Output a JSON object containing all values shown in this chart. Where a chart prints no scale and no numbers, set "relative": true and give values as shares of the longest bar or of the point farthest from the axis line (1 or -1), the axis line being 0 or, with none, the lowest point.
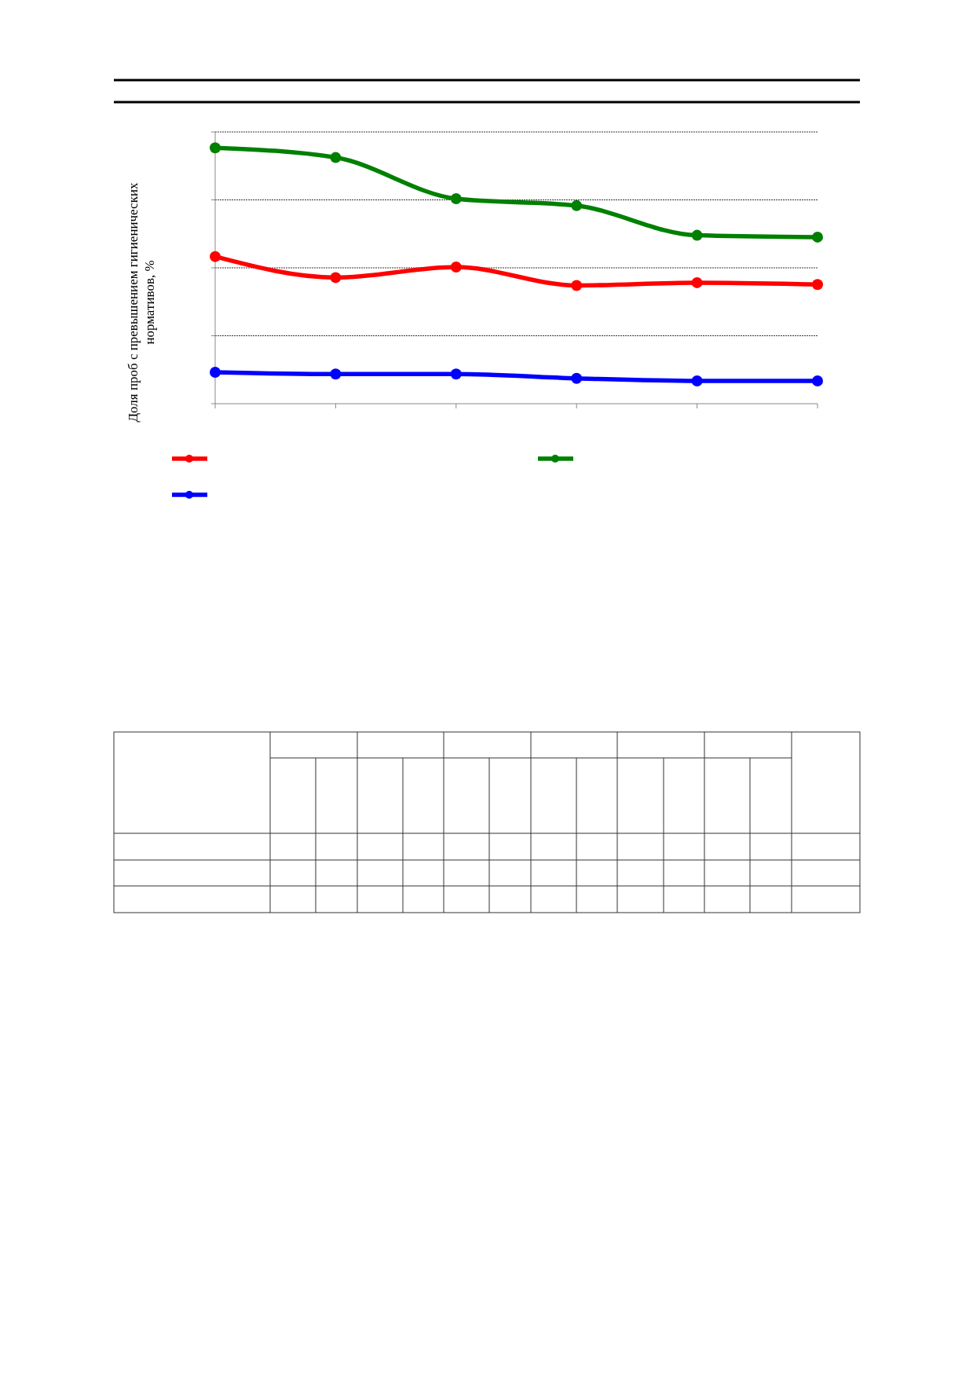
{
  "chart_data": {
    "type": "line",
    "ylabel": "Доля проб с превышением гигиенических нормативов, %",
    "relative": true,
    "categories": [
      null,
      null,
      null,
      null,
      null,
      null
    ],
    "grid": "y",
    "marker": "circle",
    "line_style": "solid",
    "series": [
      {
        "color": "#ff0000",
        "values": [
          0.575,
          0.493,
          0.534,
          0.462,
          0.473,
          0.466
        ]
      },
      {
        "color": "#008000",
        "values": [
          1,
          0.962,
          0.801,
          0.774,
          0.658,
          0.651
        ]
      },
      {
        "color": "#0000ff",
        "values": [
          0.123,
          0.116,
          0.116,
          0.099,
          0.089,
          0.089
        ]
      }
    ]
  }
}
